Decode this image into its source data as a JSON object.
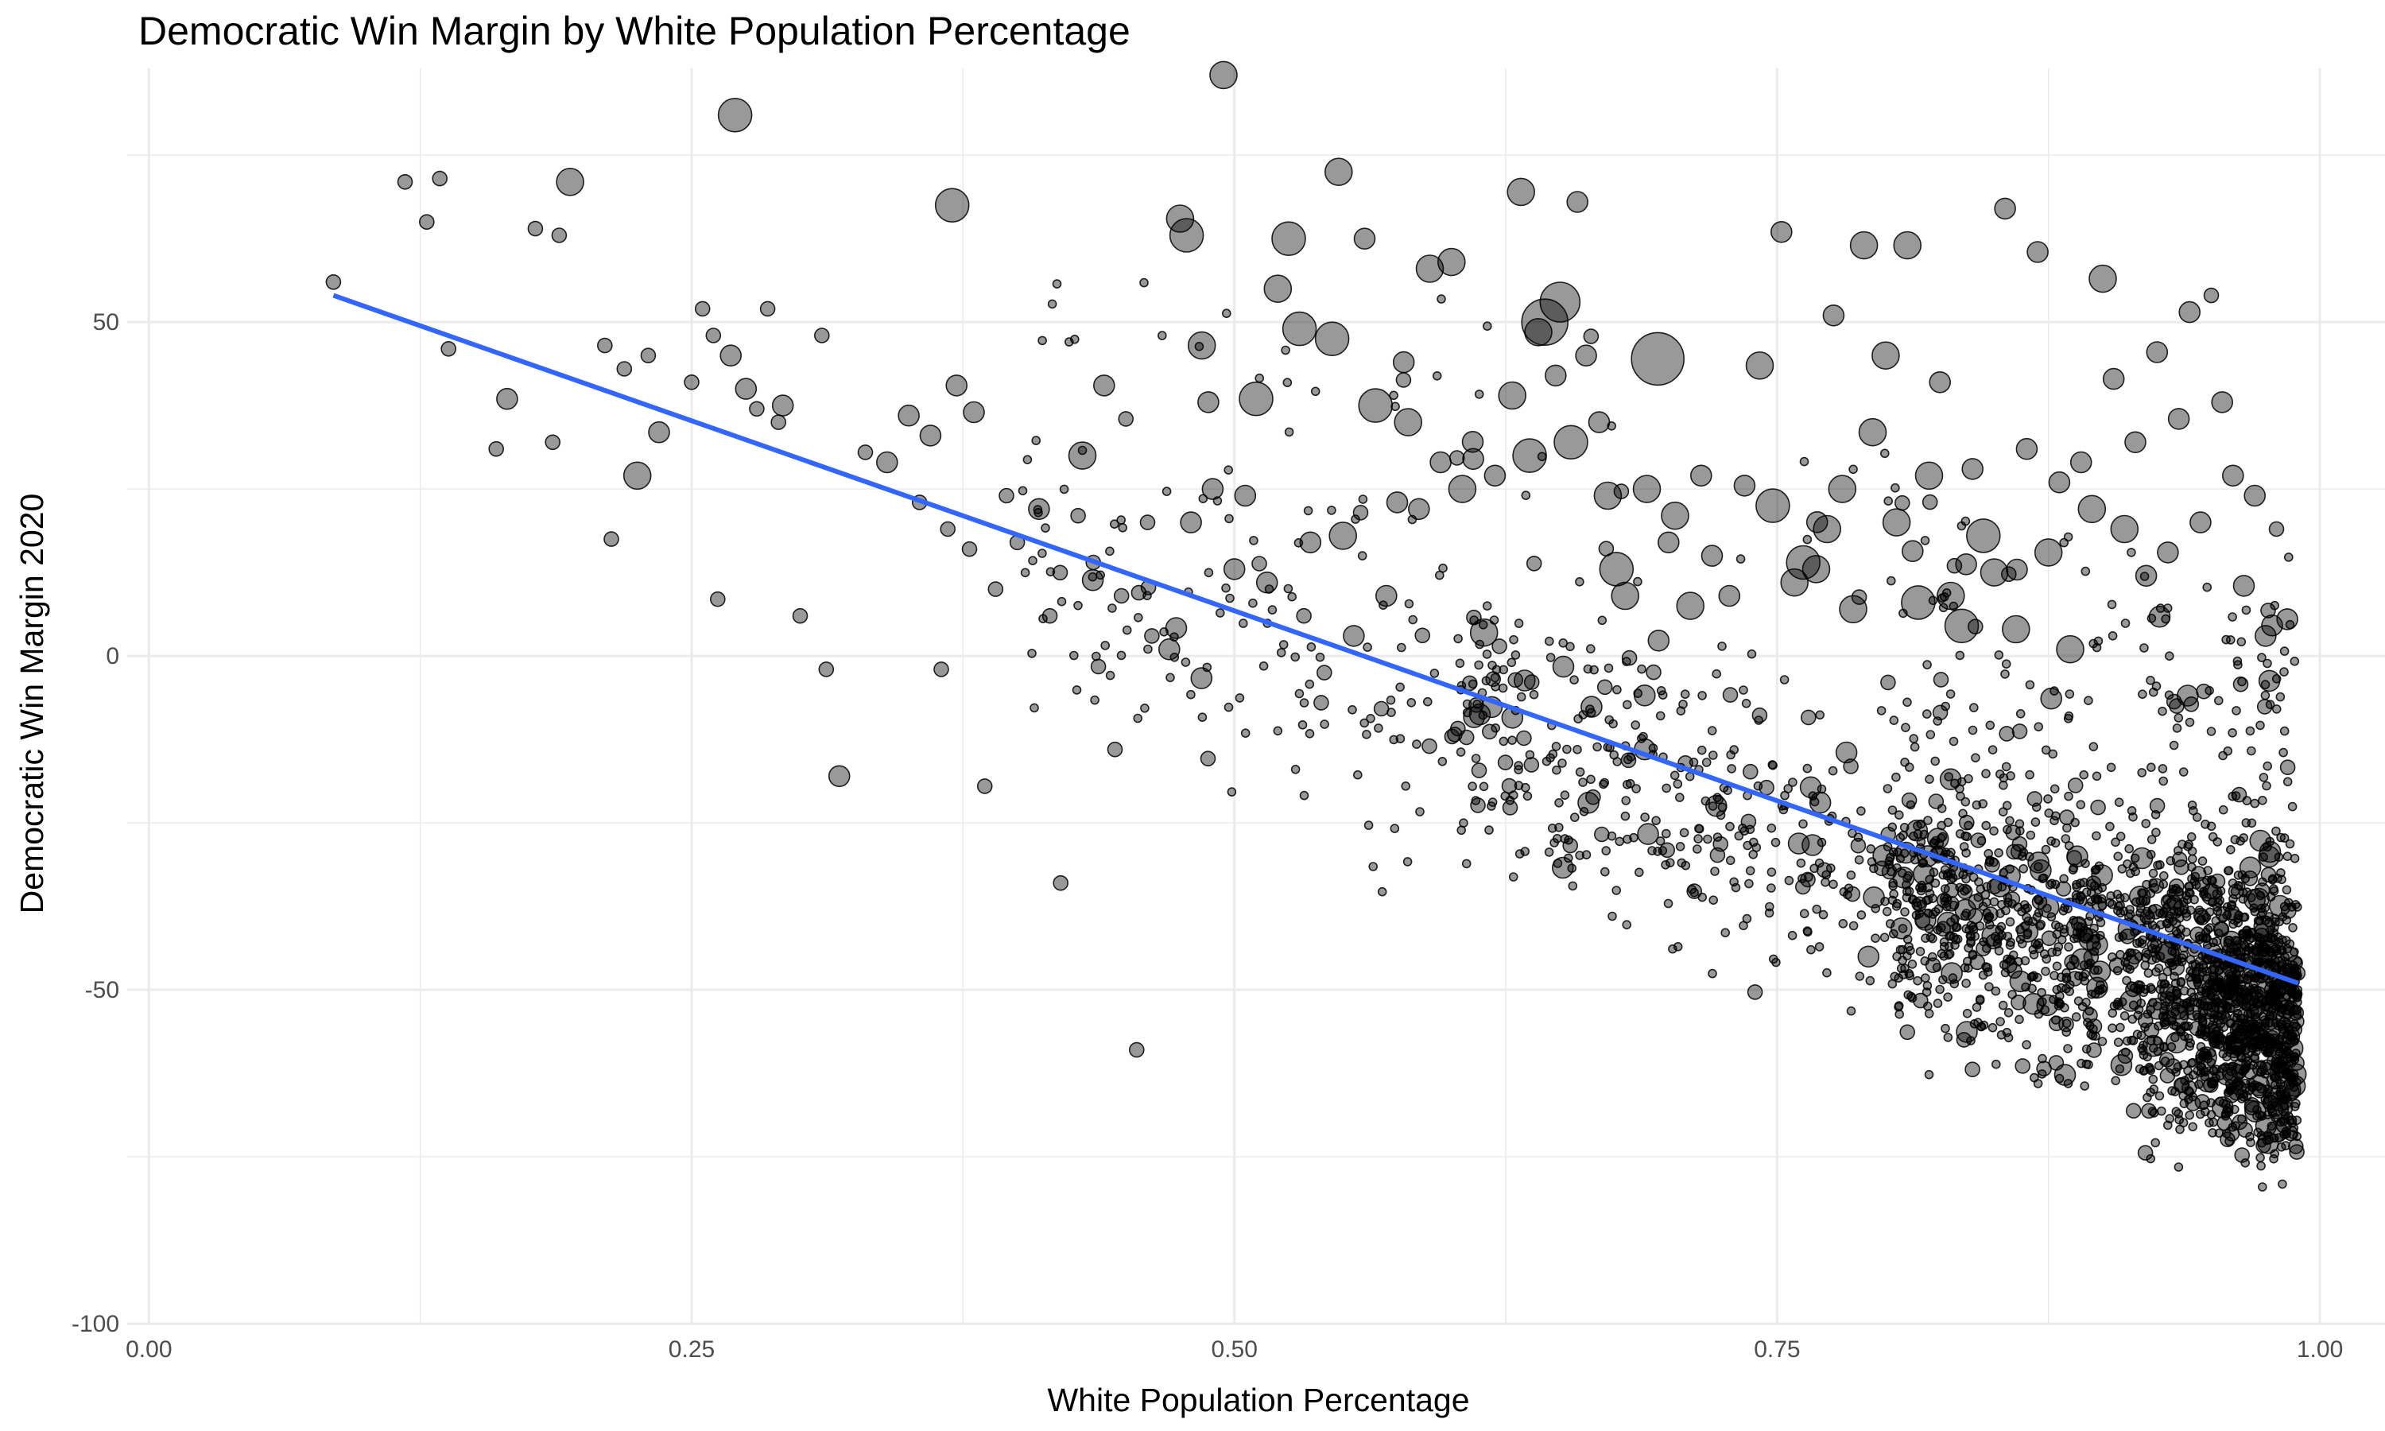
{
  "chart_data": {
    "type": "scatter",
    "title": "Democratic Win Margin by White Population Percentage",
    "xlabel": "White Population Percentage",
    "ylabel": "Democratic Win Margin 2020",
    "xlim": [
      -0.01,
      1.03
    ],
    "ylim": [
      -100,
      88
    ],
    "x_ticks": [
      0.0,
      0.25,
      0.5,
      0.75,
      1.0
    ],
    "x_tick_labels": [
      "0.00",
      "0.25",
      "0.50",
      "0.75",
      "1.00"
    ],
    "y_ticks": [
      -100,
      -50,
      0,
      50
    ],
    "y_tick_labels": [
      "-100",
      "-50",
      "0",
      "50"
    ],
    "grid": true,
    "legend": "none",
    "colors": {
      "points": "#000000",
      "trend_line": "#3366FF",
      "grid": "#ebebeb"
    },
    "point_opacity": 0.4,
    "trend_line": {
      "type": "linear",
      "x": [
        0.085,
        0.99
      ],
      "y": [
        54,
        -49
      ]
    },
    "series": [
      {
        "points": [
          [
            0.085,
            56,
            1
          ],
          [
            0.118,
            71,
            1
          ],
          [
            0.128,
            65,
            1
          ],
          [
            0.134,
            71.5,
            1
          ],
          [
            0.138,
            46,
            1
          ],
          [
            0.16,
            31,
            1
          ],
          [
            0.165,
            38.5,
            2
          ],
          [
            0.178,
            64,
            1
          ],
          [
            0.186,
            32,
            1
          ],
          [
            0.189,
            63,
            1
          ],
          [
            0.194,
            71,
            3
          ],
          [
            0.21,
            46.5,
            1
          ],
          [
            0.213,
            17.5,
            1
          ],
          [
            0.219,
            43,
            1
          ],
          [
            0.225,
            27,
            3
          ],
          [
            0.23,
            45,
            1
          ],
          [
            0.235,
            33.5,
            2
          ],
          [
            0.25,
            41,
            1
          ],
          [
            0.255,
            52,
            1
          ],
          [
            0.26,
            48,
            1
          ],
          [
            0.262,
            8.5,
            1
          ],
          [
            0.268,
            45,
            2
          ],
          [
            0.27,
            81,
            4
          ],
          [
            0.275,
            40,
            2
          ],
          [
            0.28,
            37,
            1
          ],
          [
            0.285,
            52,
            1
          ],
          [
            0.29,
            35,
            1
          ],
          [
            0.292,
            37.5,
            2
          ],
          [
            0.3,
            6,
            1
          ],
          [
            0.31,
            48,
            1
          ],
          [
            0.312,
            -2,
            1
          ],
          [
            0.318,
            -18,
            2
          ],
          [
            0.33,
            30.5,
            1
          ],
          [
            0.34,
            29,
            2
          ],
          [
            0.35,
            36,
            2
          ],
          [
            0.355,
            23,
            1
          ],
          [
            0.36,
            33,
            2
          ],
          [
            0.365,
            -2,
            1
          ],
          [
            0.368,
            19,
            1
          ],
          [
            0.37,
            67.5,
            4
          ],
          [
            0.372,
            40.5,
            2
          ],
          [
            0.378,
            16,
            1
          ],
          [
            0.38,
            36.5,
            2
          ],
          [
            0.385,
            -19.5,
            1
          ],
          [
            0.39,
            10,
            1
          ],
          [
            0.395,
            24,
            1
          ],
          [
            0.4,
            17,
            1
          ],
          [
            0.41,
            22,
            2
          ],
          [
            0.415,
            6,
            1
          ],
          [
            0.42,
            -34,
            1
          ],
          [
            0.428,
            21,
            1
          ],
          [
            0.43,
            30,
            3
          ],
          [
            0.435,
            14,
            1
          ],
          [
            0.44,
            40.5,
            2
          ],
          [
            0.445,
            -14,
            1
          ],
          [
            0.448,
            9,
            1
          ],
          [
            0.45,
            35.5,
            1
          ],
          [
            0.455,
            -59,
            1
          ],
          [
            0.46,
            20,
            1
          ],
          [
            0.462,
            3,
            1
          ],
          [
            0.47,
            1,
            2
          ],
          [
            0.475,
            65.5,
            3
          ],
          [
            0.478,
            63,
            4
          ],
          [
            0.48,
            20,
            2
          ],
          [
            0.485,
            46.5,
            3
          ],
          [
            0.488,
            38,
            2
          ],
          [
            0.49,
            25,
            2
          ],
          [
            0.495,
            87,
            3
          ],
          [
            0.5,
            13,
            2
          ],
          [
            0.505,
            24,
            2
          ],
          [
            0.51,
            38.5,
            4
          ],
          [
            0.515,
            11,
            2
          ],
          [
            0.52,
            55,
            3
          ],
          [
            0.525,
            62.5,
            4
          ],
          [
            0.53,
            49,
            4
          ],
          [
            0.532,
            6,
            1
          ],
          [
            0.535,
            17,
            2
          ],
          [
            0.54,
            -7,
            1
          ],
          [
            0.545,
            47.5,
            4
          ],
          [
            0.548,
            72.5,
            3
          ],
          [
            0.55,
            18,
            3
          ],
          [
            0.555,
            3,
            2
          ],
          [
            0.56,
            62.5,
            2
          ],
          [
            0.565,
            37.5,
            4
          ],
          [
            0.57,
            9,
            2
          ],
          [
            0.575,
            23,
            2
          ],
          [
            0.578,
            44,
            2
          ],
          [
            0.58,
            35,
            3
          ],
          [
            0.585,
            22,
            2
          ],
          [
            0.59,
            58,
            3
          ],
          [
            0.595,
            29,
            2
          ],
          [
            0.6,
            59,
            3
          ],
          [
            0.605,
            25,
            3
          ],
          [
            0.61,
            29.5,
            2
          ],
          [
            0.615,
            3.5,
            3
          ],
          [
            0.62,
            27,
            2
          ],
          [
            0.628,
            39,
            3
          ],
          [
            0.632,
            69.5,
            3
          ],
          [
            0.636,
            30,
            4
          ],
          [
            0.64,
            48.5,
            3
          ],
          [
            0.643,
            50,
            6
          ],
          [
            0.648,
            42,
            2
          ],
          [
            0.65,
            53,
            5
          ],
          [
            0.655,
            32,
            4
          ],
          [
            0.658,
            68,
            2
          ],
          [
            0.662,
            45,
            2
          ],
          [
            0.668,
            35,
            2
          ],
          [
            0.672,
            24,
            3
          ],
          [
            0.676,
            13,
            4
          ],
          [
            0.68,
            9,
            3
          ],
          [
            0.69,
            25,
            3
          ],
          [
            0.695,
            44.5,
            7
          ],
          [
            0.7,
            17,
            2
          ],
          [
            0.703,
            21,
            3
          ],
          [
            0.71,
            7.5,
            3
          ],
          [
            0.715,
            27,
            2
          ],
          [
            0.72,
            15,
            2
          ],
          [
            0.728,
            9,
            2
          ],
          [
            0.735,
            25.5,
            2
          ],
          [
            0.742,
            43.5,
            3
          ],
          [
            0.748,
            22.5,
            4
          ],
          [
            0.752,
            63.5,
            2
          ],
          [
            0.758,
            11,
            3
          ],
          [
            0.762,
            14,
            4
          ],
          [
            0.768,
            13,
            3
          ],
          [
            0.773,
            19,
            3
          ],
          [
            0.776,
            51,
            2
          ],
          [
            0.78,
            25,
            3
          ],
          [
            0.785,
            7,
            3
          ],
          [
            0.79,
            61.5,
            3
          ],
          [
            0.794,
            33.5,
            3
          ],
          [
            0.8,
            45,
            3
          ],
          [
            0.805,
            20,
            3
          ],
          [
            0.81,
            61.5,
            3
          ],
          [
            0.815,
            8,
            4
          ],
          [
            0.82,
            27,
            3
          ],
          [
            0.825,
            41,
            2
          ],
          [
            0.83,
            9,
            3
          ],
          [
            0.835,
            4.5,
            4
          ],
          [
            0.84,
            28,
            2
          ],
          [
            0.845,
            18,
            4
          ],
          [
            0.85,
            12.5,
            3
          ],
          [
            0.855,
            67,
            2
          ],
          [
            0.86,
            4,
            3
          ],
          [
            0.865,
            31,
            2
          ],
          [
            0.87,
            60.5,
            2
          ],
          [
            0.875,
            15.5,
            3
          ],
          [
            0.88,
            26,
            2
          ],
          [
            0.885,
            1,
            3
          ],
          [
            0.89,
            29,
            2
          ],
          [
            0.895,
            22,
            3
          ],
          [
            0.9,
            56.5,
            3
          ],
          [
            0.905,
            41.5,
            2
          ],
          [
            0.91,
            19,
            3
          ],
          [
            0.915,
            32,
            2
          ],
          [
            0.92,
            12,
            2
          ],
          [
            0.925,
            45.5,
            2
          ],
          [
            0.93,
            15.5,
            2
          ],
          [
            0.935,
            35.5,
            2
          ],
          [
            0.94,
            51.5,
            2
          ],
          [
            0.945,
            20,
            2
          ],
          [
            0.95,
            54,
            1
          ],
          [
            0.955,
            38,
            2
          ],
          [
            0.96,
            27,
            2
          ],
          [
            0.965,
            10.5,
            2
          ],
          [
            0.97,
            24,
            2
          ],
          [
            0.975,
            3,
            2
          ],
          [
            0.98,
            19,
            1
          ],
          [
            0.985,
            5.5,
            2
          ]
        ]
      }
    ]
  }
}
